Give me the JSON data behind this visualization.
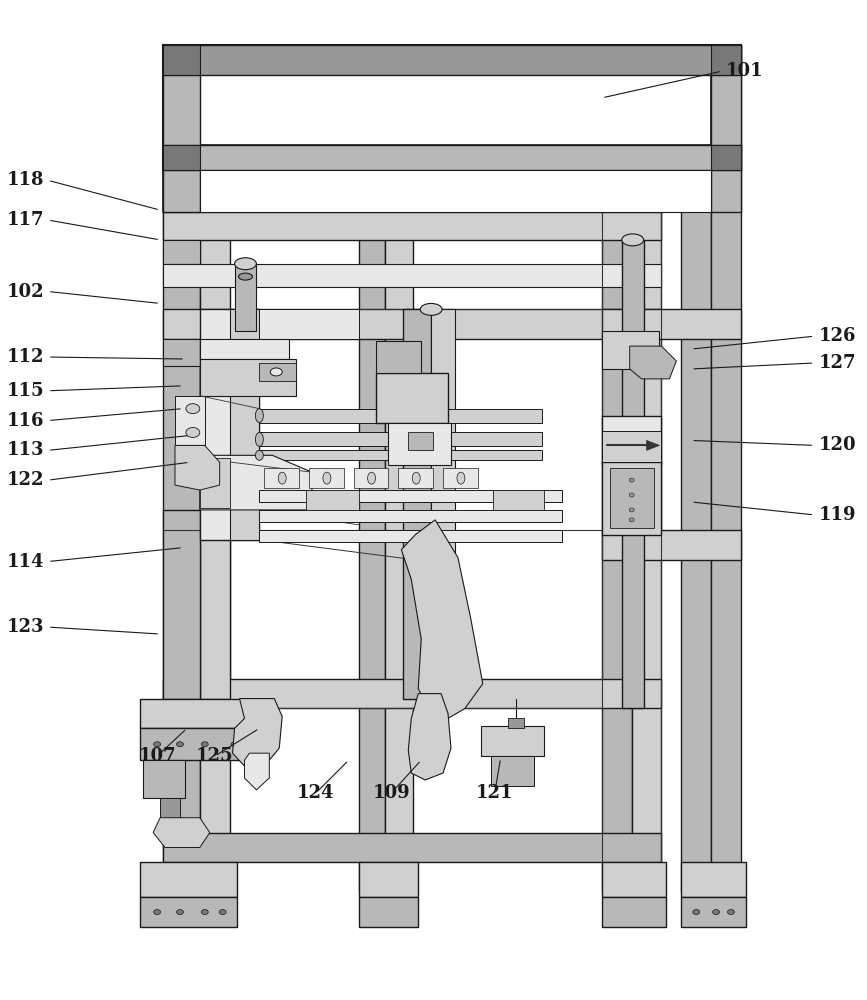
{
  "bg": "#ffffff",
  "lc": "#1a1a1a",
  "lc2": "#333333",
  "gray1": "#e8e8e8",
  "gray2": "#d0d0d0",
  "gray3": "#b8b8b8",
  "gray4": "#989898",
  "gray5": "#787878",
  "figsize": [
    8.67,
    10.0
  ],
  "dpi": 100,
  "labels": [
    [
      "101",
      725,
      68,
      600,
      95,
      "left"
    ],
    [
      "118",
      38,
      178,
      155,
      208,
      "right"
    ],
    [
      "117",
      38,
      218,
      155,
      238,
      "right"
    ],
    [
      "102",
      38,
      290,
      155,
      302,
      "right"
    ],
    [
      "112",
      38,
      356,
      180,
      358,
      "right"
    ],
    [
      "115",
      38,
      390,
      178,
      385,
      "right"
    ],
    [
      "116",
      38,
      420,
      178,
      408,
      "right"
    ],
    [
      "113",
      38,
      450,
      185,
      435,
      "right"
    ],
    [
      "122",
      38,
      480,
      185,
      462,
      "right"
    ],
    [
      "114",
      38,
      562,
      178,
      548,
      "right"
    ],
    [
      "123",
      38,
      628,
      155,
      635,
      "right"
    ],
    [
      "107",
      152,
      758,
      182,
      730,
      "center"
    ],
    [
      "125",
      210,
      758,
      255,
      730,
      "center"
    ],
    [
      "124",
      312,
      795,
      345,
      762,
      "center"
    ],
    [
      "109",
      388,
      795,
      418,
      762,
      "center"
    ],
    [
      "121",
      492,
      795,
      498,
      760,
      "center"
    ],
    [
      "126",
      818,
      335,
      690,
      348,
      "left"
    ],
    [
      "127",
      818,
      362,
      690,
      368,
      "left"
    ],
    [
      "120",
      818,
      445,
      690,
      440,
      "left"
    ],
    [
      "119",
      818,
      515,
      690,
      502,
      "left"
    ]
  ]
}
